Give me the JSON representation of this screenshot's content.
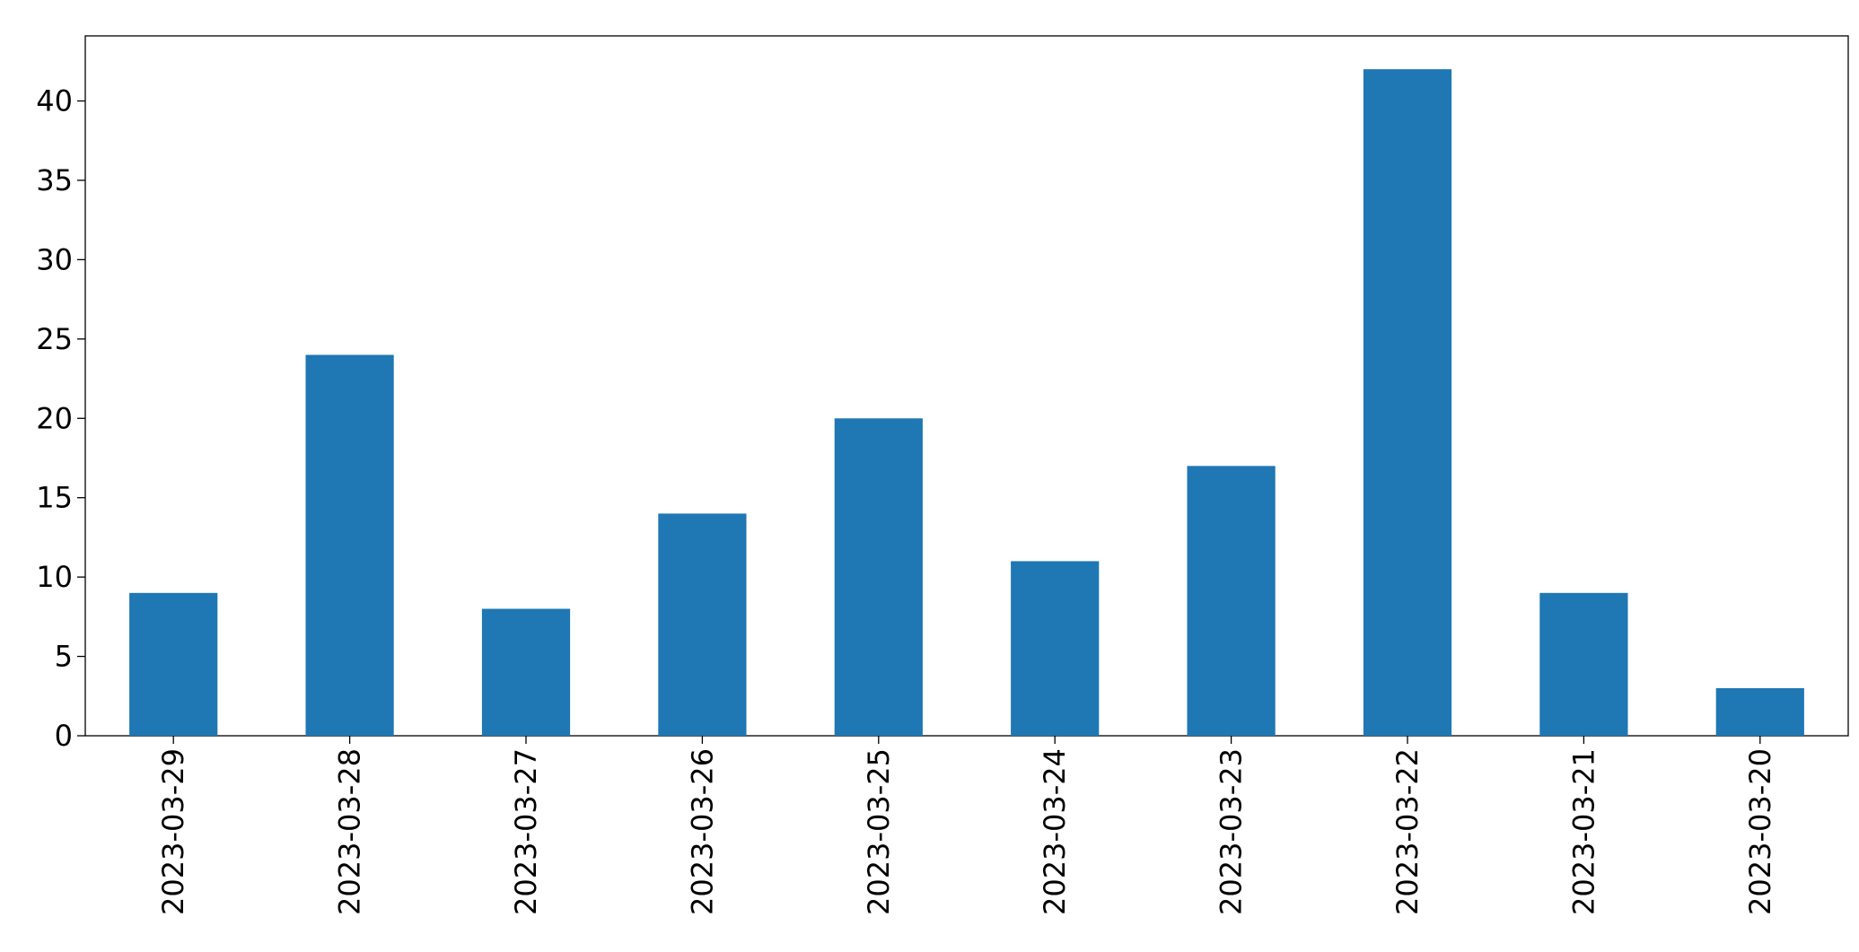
{
  "chart_data": {
    "type": "bar",
    "categories": [
      "2023-03-29",
      "2023-03-28",
      "2023-03-27",
      "2023-03-26",
      "2023-03-25",
      "2023-03-24",
      "2023-03-23",
      "2023-03-22",
      "2023-03-21",
      "2023-03-20"
    ],
    "values": [
      9,
      24,
      8,
      14,
      20,
      11,
      17,
      42,
      9,
      3
    ],
    "color": "#1f77b4",
    "ylim": [
      0,
      44.1
    ],
    "yticks": [
      0,
      5,
      10,
      15,
      20,
      25,
      30,
      35,
      40
    ],
    "grid": false
  }
}
